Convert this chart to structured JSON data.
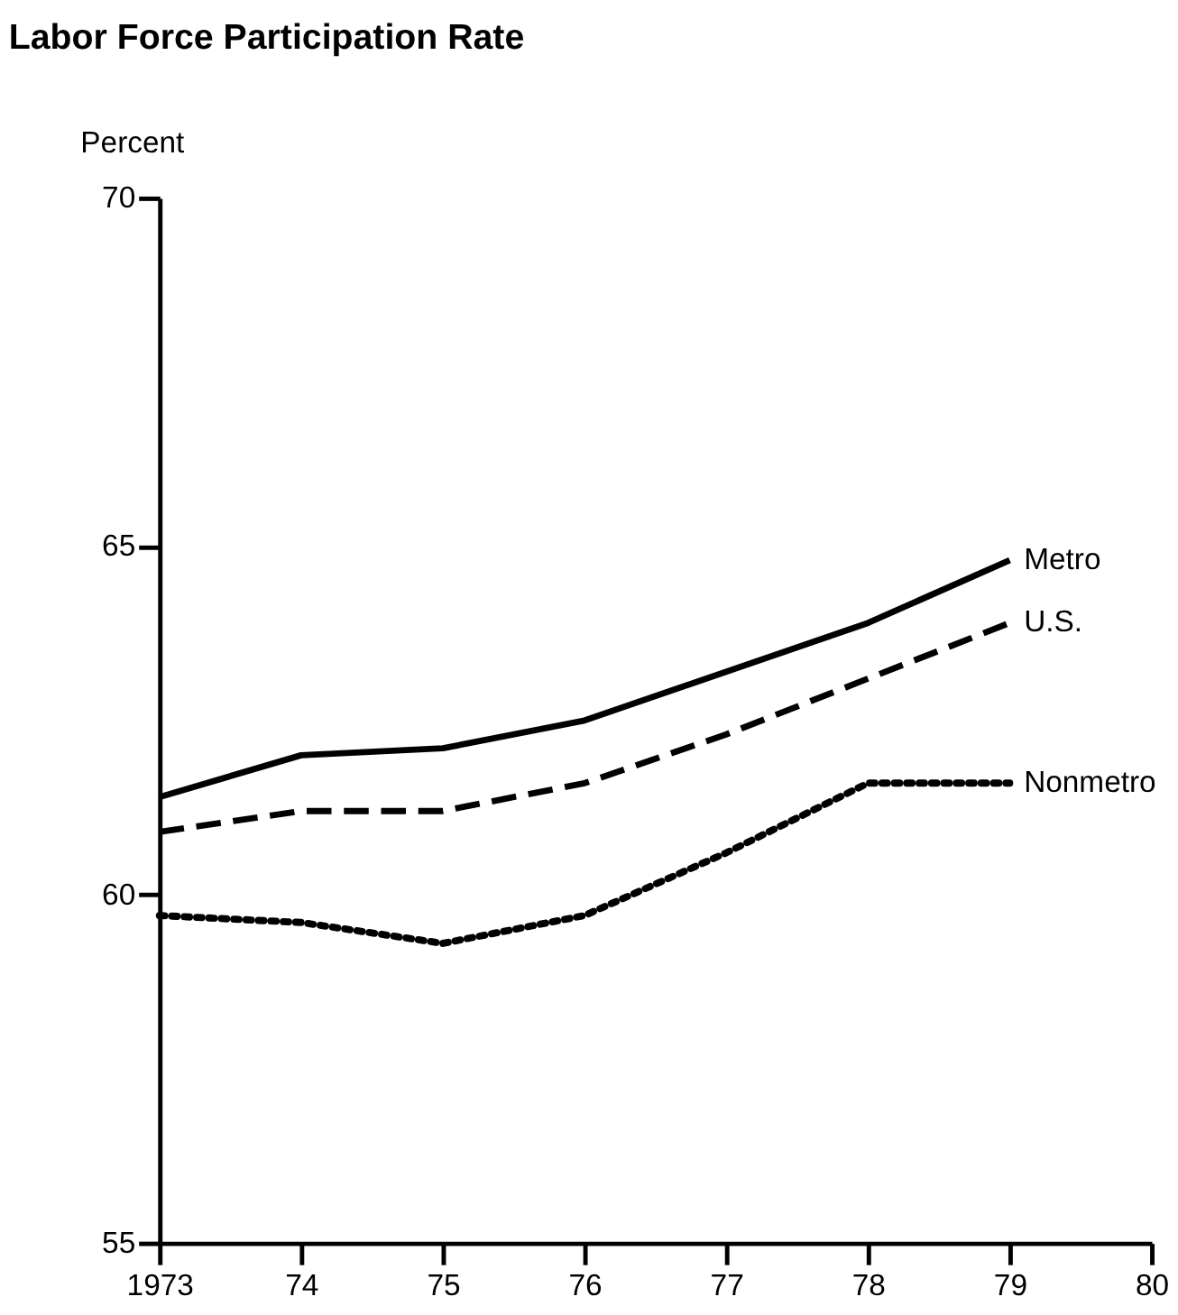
{
  "chart_data": {
    "type": "line",
    "title": "Labor Force Participation Rate",
    "ylabel": "Percent",
    "x": [
      1973,
      1974,
      1975,
      1976,
      1977,
      1978,
      1979
    ],
    "xlim": [
      1973,
      1980
    ],
    "xticks": [
      {
        "value": 1973,
        "label": "1973"
      },
      {
        "value": 1974,
        "label": "74"
      },
      {
        "value": 1975,
        "label": "75"
      },
      {
        "value": 1976,
        "label": "76"
      },
      {
        "value": 1977,
        "label": "77"
      },
      {
        "value": 1978,
        "label": "78"
      },
      {
        "value": 1979,
        "label": "79"
      },
      {
        "value": 1980,
        "label": "80"
      }
    ],
    "ylim": [
      55,
      70
    ],
    "yticks": [
      55,
      60,
      65,
      70
    ],
    "grid": false,
    "series": [
      {
        "name": "Metro",
        "color": "#000000",
        "line_style": "solid",
        "values": [
          61.4,
          62.0,
          62.1,
          62.5,
          63.2,
          63.9,
          64.8
        ]
      },
      {
        "name": "U.S.",
        "color": "#000000",
        "line_style": "dashed",
        "values": [
          60.9,
          61.2,
          61.2,
          61.6,
          62.3,
          63.1,
          63.9
        ]
      },
      {
        "name": "Nonmetro",
        "color": "#000000",
        "line_style": "dotted",
        "values": [
          59.7,
          59.6,
          59.3,
          59.7,
          60.6,
          61.6,
          61.6
        ]
      }
    ]
  }
}
